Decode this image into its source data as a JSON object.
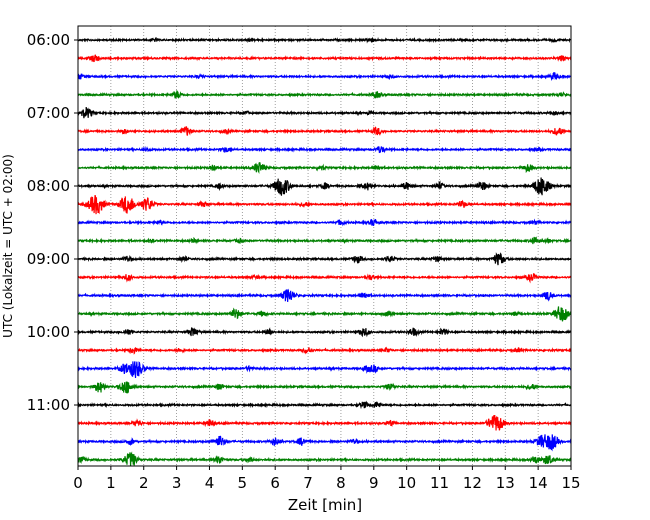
{
  "chart_data": {
    "type": "line",
    "title": "",
    "xlabel": "Zeit  [min]",
    "ylabel": "UTC (Lokalzeit = UTC + 02:00)",
    "xlim": [
      0,
      15
    ],
    "x_ticks": [
      "0",
      "1",
      "2",
      "3",
      "4",
      "5",
      "6",
      "7",
      "8",
      "9",
      "10",
      "11",
      "12",
      "13",
      "14",
      "15"
    ],
    "y_ticks": [
      "06:00",
      "07:00",
      "08:00",
      "09:00",
      "10:00",
      "11:00"
    ],
    "row_interval_min": 15,
    "first_row": "06:00",
    "grid": "vertical dotted at each minute",
    "legend": "none",
    "colors": [
      "#000000",
      "#ff0000",
      "#0000ff",
      "#008000"
    ],
    "rows": [
      {
        "start": "06:00",
        "color": "#000000",
        "events": [
          [
            2.3,
            0.25
          ],
          [
            5.2,
            0.2
          ],
          [
            8.9,
            0.35
          ],
          [
            14.5,
            0.3
          ]
        ]
      },
      {
        "start": "06:15",
        "color": "#ff0000",
        "events": [
          [
            0.5,
            0.6
          ],
          [
            14.7,
            0.4
          ]
        ]
      },
      {
        "start": "06:30",
        "color": "#0000ff",
        "events": [
          [
            0.05,
            0.4
          ],
          [
            3.7,
            0.25
          ],
          [
            9.5,
            0.35
          ],
          [
            14.5,
            0.6
          ]
        ]
      },
      {
        "start": "06:45",
        "color": "#008000",
        "events": [
          [
            3.0,
            0.6
          ],
          [
            9.1,
            0.5
          ],
          [
            14.7,
            0.3
          ]
        ]
      },
      {
        "start": "07:00",
        "color": "#000000",
        "events": [
          [
            0.25,
            0.9
          ],
          [
            5.1,
            0.25
          ],
          [
            8.9,
            0.25
          ],
          [
            14.5,
            0.25
          ]
        ]
      },
      {
        "start": "07:15",
        "color": "#ff0000",
        "events": [
          [
            1.4,
            0.4
          ],
          [
            3.3,
            0.7
          ],
          [
            4.5,
            0.3
          ],
          [
            9.1,
            0.6
          ],
          [
            14.6,
            0.7
          ]
        ]
      },
      {
        "start": "07:30",
        "color": "#0000ff",
        "events": [
          [
            2.1,
            0.25
          ],
          [
            4.5,
            0.4
          ],
          [
            9.2,
            0.55
          ],
          [
            14.0,
            0.2
          ]
        ]
      },
      {
        "start": "07:45",
        "color": "#008000",
        "events": [
          [
            4.1,
            0.4
          ],
          [
            5.5,
            0.9
          ],
          [
            7.4,
            0.4
          ],
          [
            9.1,
            0.4
          ],
          [
            13.7,
            0.6
          ]
        ]
      },
      {
        "start": "08:00",
        "color": "#000000",
        "events": [
          [
            4.3,
            0.4
          ],
          [
            6.2,
            1.6
          ],
          [
            7.5,
            0.5
          ],
          [
            8.8,
            0.6
          ],
          [
            10.0,
            0.6
          ],
          [
            11.0,
            0.5
          ],
          [
            12.3,
            0.7
          ],
          [
            14.1,
            1.6
          ]
        ]
      },
      {
        "start": "08:15",
        "color": "#ff0000",
        "events": [
          [
            0.55,
            1.6
          ],
          [
            1.5,
            1.5
          ],
          [
            2.1,
            1.1
          ],
          [
            3.8,
            0.4
          ],
          [
            6.9,
            0.4
          ],
          [
            11.7,
            0.5
          ]
        ]
      },
      {
        "start": "08:30",
        "color": "#0000ff",
        "events": [
          [
            2.5,
            0.3
          ],
          [
            8.0,
            0.4
          ],
          [
            9.0,
            0.55
          ],
          [
            13.9,
            0.3
          ]
        ]
      },
      {
        "start": "08:45",
        "color": "#008000",
        "events": [
          [
            2.2,
            0.25
          ],
          [
            3.5,
            0.3
          ],
          [
            4.9,
            0.3
          ],
          [
            13.9,
            0.55
          ],
          [
            14.3,
            0.3
          ]
        ]
      },
      {
        "start": "09:00",
        "color": "#000000",
        "events": [
          [
            1.5,
            0.5
          ],
          [
            3.2,
            0.4
          ],
          [
            8.5,
            0.6
          ],
          [
            9.5,
            0.5
          ],
          [
            10.9,
            0.4
          ],
          [
            12.8,
            1.0
          ]
        ]
      },
      {
        "start": "09:15",
        "color": "#ff0000",
        "events": [
          [
            1.5,
            0.5
          ],
          [
            5.4,
            0.3
          ],
          [
            8.9,
            0.4
          ],
          [
            13.8,
            0.6
          ]
        ]
      },
      {
        "start": "09:30",
        "color": "#0000ff",
        "events": [
          [
            6.4,
            1.1
          ],
          [
            8.7,
            0.5
          ],
          [
            14.3,
            0.7
          ]
        ]
      },
      {
        "start": "09:45",
        "color": "#008000",
        "events": [
          [
            4.8,
            0.8
          ],
          [
            5.6,
            0.4
          ],
          [
            9.4,
            0.5
          ],
          [
            13.3,
            0.3
          ],
          [
            14.7,
            1.3
          ]
        ]
      },
      {
        "start": "10:00",
        "color": "#000000",
        "events": [
          [
            1.5,
            0.5
          ],
          [
            3.5,
            0.7
          ],
          [
            5.8,
            0.4
          ],
          [
            8.7,
            0.7
          ],
          [
            10.2,
            0.6
          ],
          [
            11.1,
            0.5
          ]
        ]
      },
      {
        "start": "10:15",
        "color": "#ff0000",
        "events": [
          [
            1.7,
            0.5
          ],
          [
            3.1,
            0.3
          ],
          [
            7.0,
            0.5
          ],
          [
            9.4,
            0.3
          ],
          [
            13.4,
            0.3
          ]
        ]
      },
      {
        "start": "10:30",
        "color": "#0000ff",
        "events": [
          [
            1.4,
            0.7
          ],
          [
            1.75,
            1.5
          ],
          [
            5.2,
            0.3
          ],
          [
            8.8,
            0.4
          ],
          [
            9.0,
            0.55
          ]
        ]
      },
      {
        "start": "10:45",
        "color": "#008000",
        "events": [
          [
            0.65,
            0.9
          ],
          [
            1.45,
            1.1
          ],
          [
            4.3,
            0.5
          ],
          [
            9.5,
            0.5
          ],
          [
            13.8,
            0.5
          ]
        ]
      },
      {
        "start": "11:00",
        "color": "#000000",
        "events": [
          [
            8.7,
            0.5
          ],
          [
            9.1,
            0.5
          ]
        ]
      },
      {
        "start": "11:15",
        "color": "#ff0000",
        "events": [
          [
            1.8,
            0.5
          ],
          [
            4.0,
            0.6
          ],
          [
            9.5,
            0.4
          ],
          [
            12.6,
            0.9
          ],
          [
            12.8,
            1.0
          ]
        ]
      },
      {
        "start": "11:30",
        "color": "#0000ff",
        "events": [
          [
            1.6,
            0.5
          ],
          [
            4.3,
            0.9
          ],
          [
            6.0,
            0.6
          ],
          [
            6.8,
            0.6
          ],
          [
            8.4,
            0.4
          ],
          [
            14.1,
            0.9
          ],
          [
            14.4,
            1.3
          ]
        ]
      },
      {
        "start": "11:45",
        "color": "#008000",
        "events": [
          [
            0.1,
            0.5
          ],
          [
            1.6,
            1.2
          ],
          [
            4.3,
            0.6
          ],
          [
            5.2,
            0.4
          ],
          [
            13.9,
            0.6
          ],
          [
            14.3,
            0.8
          ]
        ]
      }
    ]
  }
}
